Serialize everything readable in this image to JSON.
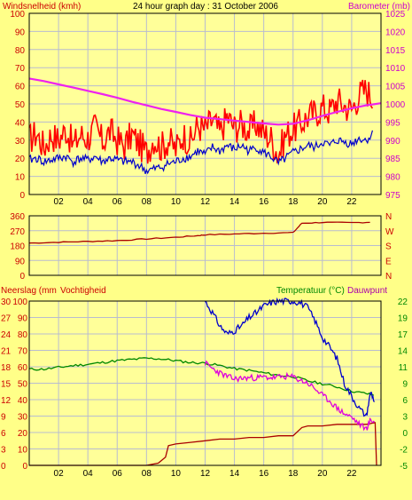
{
  "colors": {
    "background": "#ffff88",
    "plot_bg": "#ffff99",
    "grid": "#b8bccf",
    "frame": "#000000",
    "wind_gust": "#ff0000",
    "wind_avg": "#0000cc",
    "barometer": "#ee22ee",
    "direction": "#aa0000",
    "rain": "#aa0000",
    "humidity": "#0000cc",
    "temperature": "#008800",
    "dewpoint": "#dd00dd",
    "label_red": "#cc0000",
    "label_magenta": "#cc00cc",
    "label_green": "#008800",
    "label_purple": "#aa00aa"
  },
  "chart_data": [
    {
      "type": "line",
      "panel": "wind",
      "title": "24 hour graph day : 31 October 2006",
      "left_axis_label": "Windsnelheid (kmh)",
      "right_axis_label": "Barometer (mb)",
      "x_ticks": [
        "02",
        "04",
        "06",
        "08",
        "10",
        "12",
        "14",
        "16",
        "18",
        "20",
        "22"
      ],
      "x_range": [
        0,
        24
      ],
      "left_range": [
        0,
        100
      ],
      "left_ticks": [
        "0",
        "10",
        "20",
        "30",
        "40",
        "50",
        "60",
        "70",
        "80",
        "90",
        "100"
      ],
      "right_range": [
        975,
        1025
      ],
      "right_ticks": [
        "975",
        "980",
        "985",
        "990",
        "995",
        "1000",
        "1005",
        "1010",
        "1015",
        "1020",
        "1025"
      ],
      "grid": true,
      "series": [
        {
          "key": "gust",
          "axis": "left",
          "x": [
            0,
            0.5,
            1,
            1.5,
            2,
            2.5,
            3,
            3.5,
            4,
            4.5,
            5,
            5.5,
            6,
            6.5,
            7,
            7.5,
            8,
            8.5,
            9,
            9.5,
            10,
            10.5,
            11,
            11.5,
            12,
            12.5,
            13,
            13.5,
            14,
            14.5,
            15,
            15.5,
            16,
            16.5,
            17,
            17.5,
            18,
            18.5,
            19,
            19.5,
            20,
            20.5,
            21,
            21.5,
            22,
            22.5,
            23,
            23.5
          ],
          "y": [
            30,
            34,
            26,
            33,
            30,
            36,
            27,
            33,
            31,
            37,
            29,
            35,
            30,
            27,
            33,
            28,
            23,
            31,
            26,
            30,
            25,
            33,
            29,
            38,
            36,
            41,
            34,
            43,
            37,
            39,
            35,
            39,
            34,
            31,
            22,
            33,
            36,
            39,
            43,
            45,
            48,
            46,
            52,
            49,
            47,
            55,
            58,
            52
          ]
        },
        {
          "key": "average",
          "axis": "left",
          "x": [
            0,
            0.5,
            1,
            1.5,
            2,
            2.5,
            3,
            3.5,
            4,
            4.5,
            5,
            5.5,
            6,
            6.5,
            7,
            7.5,
            8,
            8.5,
            9,
            9.5,
            10,
            10.5,
            11,
            11.5,
            12,
            12.5,
            13,
            13.5,
            14,
            14.5,
            15,
            15.5,
            16,
            16.5,
            17,
            17.5,
            18,
            18.5,
            19,
            19.5,
            20,
            20.5,
            21,
            21.5,
            22,
            22.5,
            23,
            23.5
          ],
          "y": [
            19,
            20,
            18,
            19,
            20,
            21,
            18,
            20,
            19,
            21,
            18,
            20,
            19,
            18,
            18,
            16,
            13,
            14,
            15,
            17,
            18,
            20,
            21,
            24,
            22,
            26,
            24,
            27,
            25,
            27,
            24,
            26,
            23,
            21,
            17,
            20,
            23,
            25,
            27,
            26,
            29,
            27,
            30,
            29,
            28,
            31,
            30,
            34
          ]
        },
        {
          "key": "barometer",
          "axis": "right",
          "x": [
            0,
            1,
            2,
            3,
            4,
            5,
            6,
            7,
            8,
            9,
            10,
            11,
            12,
            13,
            14,
            15,
            16,
            17,
            18,
            19,
            20,
            21,
            22,
            23,
            24
          ],
          "y": [
            1007,
            1006.3,
            1005.4,
            1004.5,
            1003.6,
            1002.7,
            1001.7,
            1000.6,
            999.6,
            998.6,
            997.8,
            996.9,
            996.2,
            995.8,
            995.4,
            995,
            994.6,
            994.3,
            994.5,
            995.5,
            996.7,
            997.8,
            998.8,
            999.6,
            1000.2
          ]
        }
      ]
    },
    {
      "type": "line",
      "panel": "direction",
      "right_axis_label_letters": [
        "N",
        "W",
        "S",
        "E",
        "N"
      ],
      "x_range": [
        0,
        24
      ],
      "y_range": [
        0,
        360
      ],
      "y_ticks": [
        "0",
        "90",
        "180",
        "270",
        "360"
      ],
      "grid": true,
      "series": [
        {
          "key": "direction",
          "x": [
            0,
            2,
            4,
            6,
            8,
            10,
            11.5,
            12,
            14,
            16,
            18,
            18.6,
            20,
            22,
            23.5
          ],
          "y": [
            195,
            200,
            205,
            210,
            220,
            230,
            240,
            245,
            250,
            255,
            258,
            315,
            320,
            318,
            322
          ]
        }
      ]
    },
    {
      "type": "line",
      "panel": "rain_humidity_temperature",
      "left_axis_label_rain": "Neerslag (mm",
      "left_axis_label_humidity": "Vochtigheid",
      "right_axis_label_temp": "Temperatuur (°C)",
      "right_axis_label_dew": "Dauwpunt",
      "x_ticks": [
        "02",
        "04",
        "06",
        "08",
        "10",
        "12",
        "14",
        "16",
        "18",
        "20",
        "22"
      ],
      "x_range": [
        0,
        24
      ],
      "rain_range": [
        0,
        30
      ],
      "rain_ticks": [
        "0",
        "3",
        "6",
        "9",
        "12",
        "15",
        "18",
        "21",
        "24",
        "27",
        "30"
      ],
      "humidity_range": [
        0,
        100
      ],
      "humidity_ticks": [
        "0",
        "10",
        "20",
        "30",
        "40",
        "50",
        "60",
        "70",
        "80",
        "90",
        "100"
      ],
      "temp_range": [
        -5,
        22
      ],
      "temp_ticks": [
        "-5",
        "-2",
        "0",
        "3",
        "6",
        "9",
        "11",
        "14",
        "17",
        "19",
        "22"
      ],
      "grid": true,
      "series": [
        {
          "key": "humidity",
          "axis": "humidity",
          "x": [
            12,
            12.5,
            13,
            13.5,
            14,
            14.5,
            15,
            15.5,
            16,
            16.5,
            17,
            17.5,
            18,
            18.5,
            19,
            19.5,
            20,
            20.5,
            21,
            21.5,
            22,
            22.5,
            23,
            23.3,
            23.6
          ],
          "y": [
            100,
            93,
            85,
            80,
            82,
            85,
            90,
            93,
            97,
            99,
            100,
            100,
            100,
            99,
            96,
            88,
            78,
            72,
            65,
            50,
            42,
            35,
            30,
            45,
            38
          ]
        },
        {
          "key": "temperature",
          "axis": "temp",
          "x": [
            0,
            1,
            2,
            3,
            4,
            5,
            6,
            7,
            8,
            9,
            10,
            11,
            12,
            13,
            14,
            15,
            16,
            17,
            18,
            19,
            20,
            21,
            22,
            23,
            23.6
          ],
          "y": [
            10.8,
            10.8,
            11.1,
            11.4,
            11.6,
            11.9,
            12.2,
            12.4,
            12.6,
            12.5,
            12.2,
            11.9,
            11.8,
            11.4,
            10.9,
            10.6,
            10.2,
            9.8,
            9.6,
            8.9,
            8.4,
            7.9,
            7.2,
            6.8,
            6.5
          ]
        },
        {
          "key": "dewpoint",
          "axis": "temp",
          "x": [
            12,
            12.5,
            13,
            13.5,
            14,
            14.5,
            15,
            15.5,
            16,
            16.5,
            17,
            17.5,
            18,
            18.5,
            19,
            19.5,
            20,
            20.5,
            21,
            21.5,
            22,
            22.5,
            23,
            23.3,
            23.6
          ],
          "y": [
            11.8,
            10.9,
            10.2,
            9.6,
            9.2,
            9.3,
            9.4,
            9.4,
            9.5,
            9.4,
            9.5,
            9.6,
            9.5,
            9,
            8.5,
            7.6,
            6.5,
            5.6,
            4.4,
            3.5,
            2.9,
            1.8,
            1,
            2.5,
            2
          ]
        },
        {
          "key": "rain",
          "axis": "rain",
          "x": [
            0,
            7,
            8,
            8.8,
            9.3,
            9.5,
            10,
            11,
            12,
            13,
            14,
            15,
            16,
            17,
            18,
            18.6,
            19,
            20,
            21,
            22,
            23,
            23.6,
            23.7
          ],
          "y": [
            0,
            0,
            0,
            0.4,
            1.5,
            3.6,
            3.9,
            4.2,
            4.5,
            4.8,
            4.8,
            5.1,
            5.1,
            5.4,
            5.4,
            6.9,
            7.2,
            7.2,
            7.5,
            7.5,
            7.5,
            7.8,
            0
          ]
        }
      ]
    }
  ]
}
